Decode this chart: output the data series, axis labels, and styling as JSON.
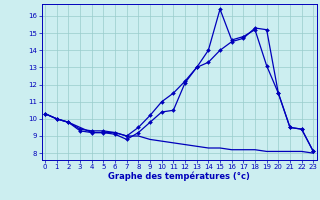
{
  "xlabel": "Graphe des températures (°c)",
  "bg_color": "#cceef0",
  "line_color": "#0000bb",
  "grid_color": "#99cccc",
  "x_ticks": [
    0,
    1,
    2,
    3,
    4,
    5,
    6,
    7,
    8,
    9,
    10,
    11,
    12,
    13,
    14,
    15,
    16,
    17,
    18,
    19,
    20,
    21,
    22,
    23
  ],
  "y_ticks": [
    8,
    9,
    10,
    11,
    12,
    13,
    14,
    15,
    16
  ],
  "xlim": [
    -0.3,
    23.3
  ],
  "ylim": [
    7.6,
    16.7
  ],
  "line1_x": [
    0,
    1,
    2,
    3,
    4,
    5,
    6,
    7,
    8,
    9,
    10,
    11,
    12,
    13,
    14,
    15,
    16,
    17,
    18,
    19,
    20,
    21,
    22,
    23
  ],
  "line1_y": [
    10.3,
    10.0,
    9.8,
    9.3,
    9.2,
    9.2,
    9.1,
    8.8,
    9.2,
    9.8,
    10.4,
    10.5,
    12.1,
    13.0,
    13.3,
    14.0,
    14.5,
    14.7,
    15.3,
    15.2,
    11.5,
    9.5,
    9.4,
    8.1
  ],
  "line2_x": [
    0,
    1,
    2,
    3,
    4,
    5,
    6,
    7,
    8,
    9,
    10,
    11,
    12,
    13,
    14,
    15,
    16,
    17,
    18,
    19,
    20,
    21,
    22,
    23
  ],
  "line2_y": [
    10.3,
    10.0,
    9.8,
    9.4,
    9.3,
    9.3,
    9.2,
    9.0,
    9.5,
    10.2,
    11.0,
    11.5,
    12.2,
    13.0,
    14.0,
    16.4,
    14.6,
    14.8,
    15.2,
    13.1,
    11.5,
    9.5,
    9.4,
    8.1
  ],
  "line3_x": [
    0,
    1,
    2,
    3,
    4,
    5,
    6,
    7,
    8,
    9,
    10,
    11,
    12,
    13,
    14,
    15,
    16,
    17,
    18,
    19,
    20,
    21,
    22,
    23
  ],
  "line3_y": [
    10.3,
    10.0,
    9.8,
    9.5,
    9.2,
    9.2,
    9.2,
    9.0,
    9.0,
    8.8,
    8.7,
    8.6,
    8.5,
    8.4,
    8.3,
    8.3,
    8.2,
    8.2,
    8.2,
    8.1,
    8.1,
    8.1,
    8.1,
    8.0
  ]
}
